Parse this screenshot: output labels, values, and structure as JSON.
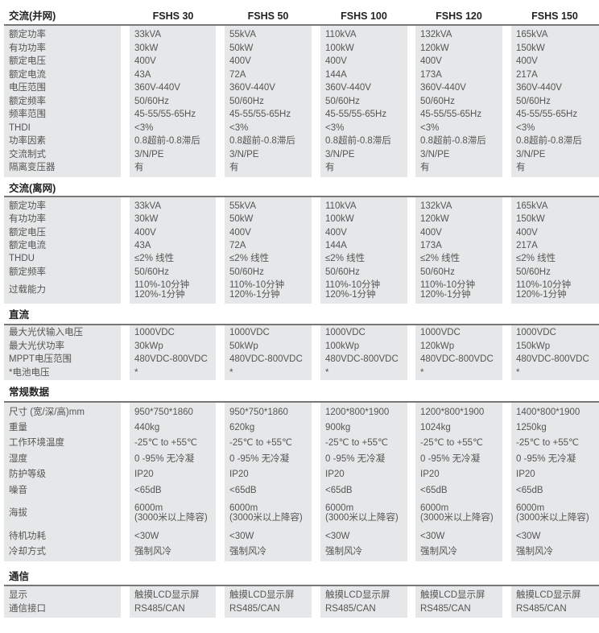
{
  "models": [
    "FSHS 30",
    "FSHS 50",
    "FSHS 100",
    "FSHS 120",
    "FSHS 150"
  ],
  "sections": [
    {
      "title": "交流(并网)",
      "rows": [
        {
          "label": "额定功率",
          "values": [
            "33kVA",
            "55kVA",
            "110kVA",
            "132kVA",
            "165kVA"
          ]
        },
        {
          "label": "有功功率",
          "values": [
            "30kW",
            "50kW",
            "100kW",
            "120kW",
            "150kW"
          ]
        },
        {
          "label": "额定电压",
          "values": [
            "400V",
            "400V",
            "400V",
            "400V",
            "400V"
          ]
        },
        {
          "label": "额定电流",
          "values": [
            "43A",
            "72A",
            "144A",
            "173A",
            "217A"
          ]
        },
        {
          "label": "电压范围",
          "values": [
            "360V-440V",
            "360V-440V",
            "360V-440V",
            "360V-440V",
            "360V-440V"
          ]
        },
        {
          "label": "额定频率",
          "values": [
            "50/60Hz",
            "50/60Hz",
            "50/60Hz",
            "50/60Hz",
            "50/60Hz"
          ]
        },
        {
          "label": "频率范围",
          "values": [
            "45-55/55-65Hz",
            "45-55/55-65Hz",
            "45-55/55-65Hz",
            "45-55/55-65Hz",
            "45-55/55-65Hz"
          ]
        },
        {
          "label": "THDI",
          "values": [
            "<3%",
            "<3%",
            "<3%",
            "<3%",
            "<3%"
          ]
        },
        {
          "label": "功率因素",
          "values": [
            "0.8超前-0.8滞后",
            "0.8超前-0.8滞后",
            "0.8超前-0.8滞后",
            "0.8超前-0.8滞后",
            "0.8超前-0.8滞后"
          ]
        },
        {
          "label": "交流制式",
          "values": [
            "3/N/PE",
            "3/N/PE",
            "3/N/PE",
            "3/N/PE",
            "3/N/PE"
          ]
        },
        {
          "label": "隔离变压器",
          "values": [
            "有",
            "有",
            "有",
            "有",
            "有"
          ]
        }
      ]
    },
    {
      "title": "交流(离网)",
      "rows": [
        {
          "label": "额定功率",
          "values": [
            "33kVA",
            "55kVA",
            "110kVA",
            "132kVA",
            "165kVA"
          ]
        },
        {
          "label": "有功功率",
          "values": [
            "30kW",
            "50kW",
            "100kW",
            "120kW",
            "150kW"
          ]
        },
        {
          "label": "额定电压",
          "values": [
            "400V",
            "400V",
            "400V",
            "400V",
            "400V"
          ]
        },
        {
          "label": "额定电流",
          "values": [
            "43A",
            "72A",
            "144A",
            "173A",
            "217A"
          ]
        },
        {
          "label": "THDU",
          "values": [
            "≤2% 线性",
            "≤2% 线性",
            "≤2% 线性",
            "≤2% 线性",
            "≤2% 线性"
          ]
        },
        {
          "label": "额定频率",
          "values": [
            "50/60Hz",
            "50/60Hz",
            "50/60Hz",
            "50/60Hz",
            "50/60Hz"
          ]
        },
        {
          "label": "过载能力",
          "values": [
            "110%-10分钟\n120%-1分钟",
            "110%-10分钟\n120%-1分钟",
            "110%-10分钟\n120%-1分钟",
            "110%-10分钟\n120%-1分钟",
            "110%-10分钟\n120%-1分钟"
          ]
        }
      ]
    },
    {
      "title": "直流",
      "rows": [
        {
          "label": "最大光伏输入电压",
          "values": [
            "1000VDC",
            "1000VDC",
            "1000VDC",
            "1000VDC",
            "1000VDC"
          ]
        },
        {
          "label": "最大光伏功率",
          "values": [
            "30kWp",
            "50kWp",
            "100kWp",
            "120kWp",
            "150kWp"
          ]
        },
        {
          "label": "MPPT电压范围",
          "values": [
            "480VDC-800VDC",
            "480VDC-800VDC",
            "480VDC-800VDC",
            "480VDC-800VDC",
            "480VDC-800VDC"
          ]
        },
        {
          "label": "*电池电压",
          "values": [
            "*",
            "*",
            "*",
            "*",
            "*"
          ]
        }
      ]
    },
    {
      "title": "常规数据",
      "rows": [
        {
          "label": "尺寸 (宽/深/高)mm",
          "values": [
            "950*750*1860",
            "950*750*1860",
            "1200*800*1900",
            "1200*800*1900",
            "1400*800*1900"
          ]
        },
        {
          "label": "重量",
          "values": [
            "440kg",
            "620kg",
            "900kg",
            "1024kg",
            "1250kg"
          ]
        },
        {
          "label": "工作环境温度",
          "values": [
            "-25℃ to +55℃",
            "-25℃ to +55℃",
            "-25℃ to +55℃",
            "-25℃ to +55℃",
            "-25℃ to +55℃"
          ]
        },
        {
          "label": "湿度",
          "values": [
            "0 -95% 无冷凝",
            "0 -95% 无冷凝",
            "0 -95% 无冷凝",
            "0 -95% 无冷凝",
            "0 -95% 无冷凝"
          ]
        },
        {
          "label": "防护等级",
          "values": [
            "IP20",
            "IP20",
            "IP20",
            "IP20",
            "IP20"
          ]
        },
        {
          "label": "噪音",
          "values": [
            "<65dB",
            "<65dB",
            "<65dB",
            "<65dB",
            "<65dB"
          ]
        },
        {
          "label": "海拔",
          "values": [
            "6000m\n(3000米以上降容)",
            "6000m\n(3000米以上降容)",
            "6000m\n(3000米以上降容)",
            "6000m\n(3000米以上降容)",
            "6000m\n(3000米以上降容)"
          ]
        },
        {
          "label": "待机功耗",
          "values": [
            "<30W",
            "<30W",
            "<30W",
            "<30W",
            "<30W"
          ]
        },
        {
          "label": "冷却方式",
          "values": [
            "强制风冷",
            "强制风冷",
            "强制风冷",
            "强制风冷",
            "强制风冷"
          ]
        }
      ]
    },
    {
      "title": "通信",
      "rows": [
        {
          "label": "显示",
          "values": [
            "触摸LCD显示屏",
            "触摸LCD显示屏",
            "触摸LCD显示屏",
            "触摸LCD显示屏",
            "触摸LCD显示屏"
          ]
        },
        {
          "label": "通信接口",
          "values": [
            "RS485/CAN",
            "RS485/CAN",
            "RS485/CAN",
            "RS485/CAN",
            "RS485/CAN"
          ]
        }
      ]
    }
  ]
}
